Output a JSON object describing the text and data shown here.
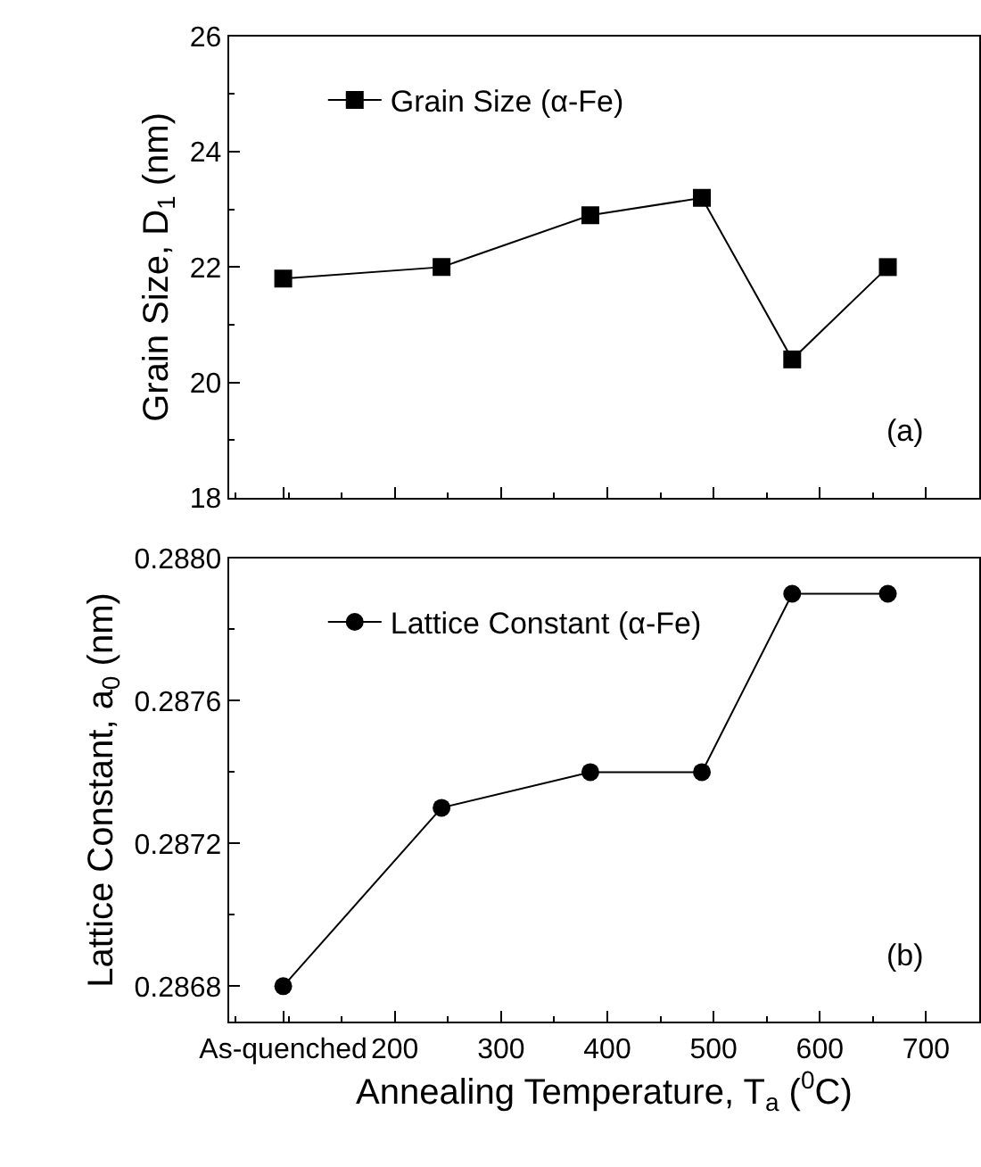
{
  "chart_data": [
    {
      "type": "line",
      "ylabel": "Grain Size, D$_{1}$ (nm)",
      "x": [
        95,
        244,
        384,
        489,
        574,
        664
      ],
      "series": [
        {
          "name": "Grain Size (α-Fe)",
          "color": "#000000",
          "values": [
            21.8,
            22.0,
            22.9,
            23.2,
            20.4,
            22.0
          ]
        }
      ],
      "xlim": [
        44,
        750
      ],
      "xticks": [
        {
          "value": 95,
          "label": null
        },
        200,
        300,
        400,
        500,
        600,
        700
      ],
      "ylim": [
        18,
        26
      ],
      "yticks": [
        18,
        20,
        22,
        24,
        26
      ],
      "tick_labels": "y",
      "marker": "square",
      "line_style": "solid",
      "legend": "top left",
      "annotations": [
        "(a)"
      ]
    },
    {
      "type": "line",
      "ylabel": "Lattice Constant, a$_{0}$ (nm)",
      "xlabel": "Annealing Temperature, T$_{a}$ ($^{0}$C)",
      "x": [
        95,
        244,
        384,
        489,
        574,
        664
      ],
      "series": [
        {
          "name": "Lattice Constant (α-Fe)",
          "color": "#000000",
          "values": [
            0.2868,
            0.2873,
            0.2874,
            0.2874,
            0.2879,
            0.2879
          ]
        }
      ],
      "xlim": [
        44,
        750
      ],
      "xticks": [
        {
          "value": 95,
          "label": "As-quenched"
        },
        200,
        300,
        400,
        500,
        600,
        700
      ],
      "ylim": [
        0.2867,
        0.288
      ],
      "yticks": [
        {
          "value": 0.2868,
          "label": "0.2868"
        },
        {
          "value": 0.2872,
          "label": "0.2872"
        },
        {
          "value": 0.2876,
          "label": "0.2876"
        },
        {
          "value": 0.288,
          "label": "0.2880"
        }
      ],
      "marker": "circle",
      "line_style": "solid",
      "legend": "top left",
      "annotations": [
        "(b)"
      ]
    }
  ]
}
